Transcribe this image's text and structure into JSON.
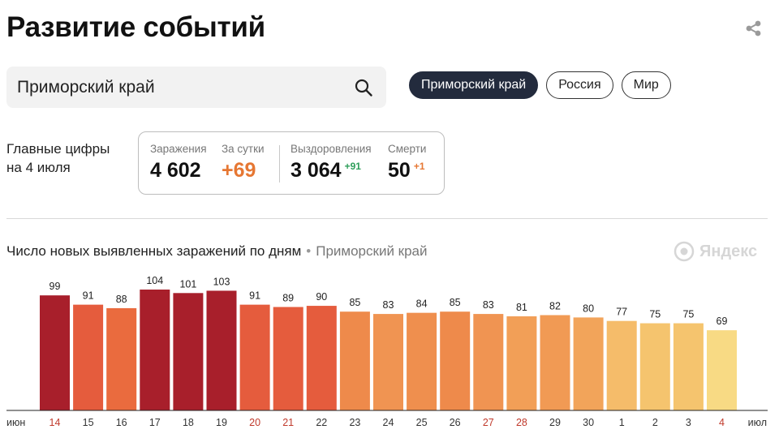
{
  "header": {
    "title": "Развитие событий"
  },
  "icons": {
    "share": "share-icon",
    "search": "search-icon",
    "logo": "yandex-logo-icon"
  },
  "search": {
    "value": "Приморский край"
  },
  "chips": [
    {
      "label": "Приморский край",
      "active": true
    },
    {
      "label": "Россия",
      "active": false
    },
    {
      "label": "Мир",
      "active": false
    }
  ],
  "summary": {
    "label_line1": "Главные цифры",
    "label_line2": "на 4 июля",
    "infected_label": "Заражения",
    "infected_value": "4 602",
    "day_label": "За сутки",
    "day_value": "+69",
    "recovered_label": "Выздоровления",
    "recovered_value": "3 064",
    "recovered_delta": "+91",
    "deaths_label": "Смерти",
    "deaths_value": "50",
    "deaths_delta": "+1"
  },
  "chart_section": {
    "title": "Число новых выявленных заражений по дням",
    "separator": "•",
    "region": "Приморский край",
    "logo_text": "Яндекс"
  },
  "colors": {
    "active_chip": "#232b3d",
    "accent_orange": "#e67733",
    "accent_green": "#2e9e5a",
    "weekend_label": "#c0392b"
  },
  "chart_data": {
    "type": "bar",
    "categories": [
      "14",
      "15",
      "16",
      "17",
      "18",
      "19",
      "20",
      "21",
      "22",
      "23",
      "24",
      "25",
      "26",
      "27",
      "28",
      "29",
      "30",
      "1",
      "2",
      "3",
      "4"
    ],
    "values": [
      99,
      91,
      88,
      104,
      101,
      103,
      91,
      89,
      90,
      85,
      83,
      84,
      85,
      83,
      81,
      82,
      80,
      77,
      75,
      75,
      69
    ],
    "weekend": [
      true,
      false,
      false,
      false,
      false,
      false,
      true,
      true,
      false,
      false,
      false,
      false,
      false,
      true,
      true,
      false,
      false,
      false,
      false,
      false,
      true
    ],
    "colors": [
      "#a81f2b",
      "#e55c3d",
      "#ea6b3e",
      "#a81f2b",
      "#a81f2b",
      "#a81f2b",
      "#e55c3d",
      "#e55c3d",
      "#e55c3d",
      "#ee8a4b",
      "#f09452",
      "#ef8f4e",
      "#ee8a4b",
      "#f09452",
      "#f29f57",
      "#f19a54",
      "#f2a45a",
      "#f5bc6a",
      "#f5c46e",
      "#f5c46e",
      "#f8da84"
    ],
    "month_start": "июн",
    "month_end": "июл",
    "ylim": [
      0,
      104
    ],
    "grid": false,
    "legend": "none"
  }
}
